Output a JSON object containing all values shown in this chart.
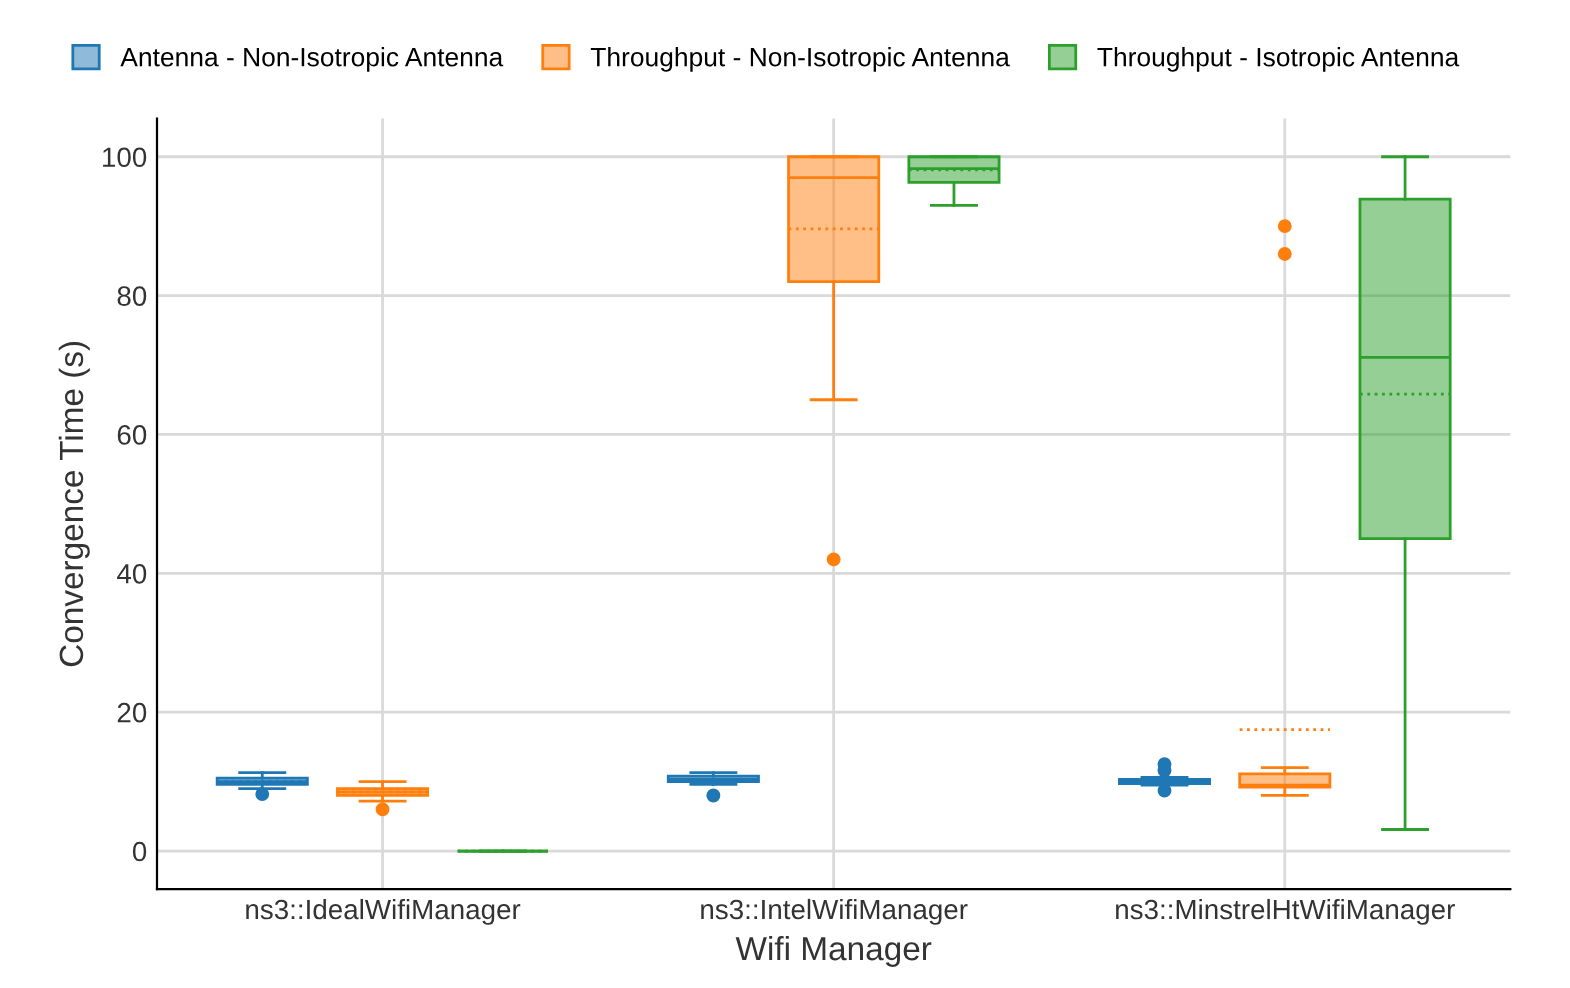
{
  "chart_data": {
    "type": "box",
    "xlabel": "Wifi Manager",
    "ylabel": "Convergence Time (s)",
    "categories": [
      "ns3::IdealWifiManager",
      "ns3::IntelWifiManager",
      "ns3::MinstrelHtWifiManager"
    ],
    "ylim": [
      -5.5,
      105.5
    ],
    "yticks": [
      0,
      20,
      40,
      60,
      80,
      100
    ],
    "grid": true,
    "legend": "top",
    "series": [
      {
        "name": "Antenna - Non-Isotropic Antenna",
        "color": "#1f77b4",
        "boxes": [
          {
            "low": 9.0,
            "q1": 9.6,
            "median": 10,
            "q3": 10.5,
            "high": 11.3,
            "mean": 10,
            "outliers": [
              8.2
            ]
          },
          {
            "low": 9.6,
            "q1": 10,
            "median": 10.3,
            "q3": 10.8,
            "high": 11.3,
            "mean": 10.3,
            "outliers": [
              8
            ]
          },
          {
            "low": 9.5,
            "q1": 9.7,
            "median": 10,
            "q3": 10.3,
            "high": 10.6,
            "mean": 10,
            "outliers": [
              8.7,
              11.6,
              12.5
            ]
          }
        ]
      },
      {
        "name": "Throughput - Non-Isotropic Antenna",
        "color": "#ff7f0e",
        "boxes": [
          {
            "low": 7.2,
            "q1": 8,
            "median": 8.5,
            "q3": 9,
            "high": 10,
            "mean": 8.5,
            "outliers": [
              6
            ]
          },
          {
            "low": 65,
            "q1": 82,
            "median": 97,
            "q3": 100,
            "high": 100,
            "mean": 89.6,
            "outliers": [
              42
            ]
          },
          {
            "low": 8,
            "q1": 9.2,
            "median": 9.5,
            "q3": 11.1,
            "high": 12,
            "mean": 17.5,
            "outliers": [
              86,
              90
            ]
          }
        ]
      },
      {
        "name": "Throughput - Isotropic Antenna",
        "color": "#2ca02c",
        "boxes": [
          {
            "low": 0,
            "q1": 0,
            "median": 0,
            "q3": 0,
            "high": 0,
            "mean": 0
          },
          {
            "low": 93,
            "q1": 96.3,
            "median": 98.3,
            "q3": 100,
            "high": 100,
            "mean": 98.1
          },
          {
            "low": 3.1,
            "q1": 45,
            "median": 71.1,
            "q3": 93.9,
            "high": 100,
            "mean": 65.8
          }
        ]
      }
    ]
  }
}
